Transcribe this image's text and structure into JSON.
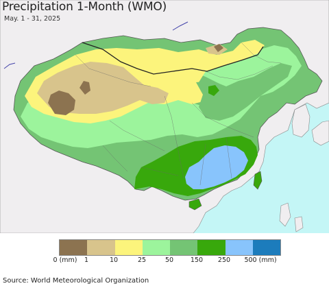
{
  "title": "Precipitation 1-Month (WMO)",
  "subtitle": "May. 1 - 31, 2025",
  "source": "Source: World Meteorological Organization",
  "legend": {
    "colors": [
      "#8c7350",
      "#d8c48c",
      "#fcf47c",
      "#9cf49c",
      "#74c474",
      "#38a80c",
      "#88c4fc",
      "#1c7cbc"
    ],
    "ticks": [
      {
        "label": "0 (mm)"
      },
      {
        "label": "1"
      },
      {
        "label": "10"
      },
      {
        "label": "25"
      },
      {
        "label": "50"
      },
      {
        "label": "150"
      },
      {
        "label": "250"
      },
      {
        "label": "500 (mm)"
      }
    ]
  },
  "map": {
    "ocean_color": "#c4f6f6",
    "land_outside_color": "#f0eef0",
    "border_color": "#555555"
  }
}
